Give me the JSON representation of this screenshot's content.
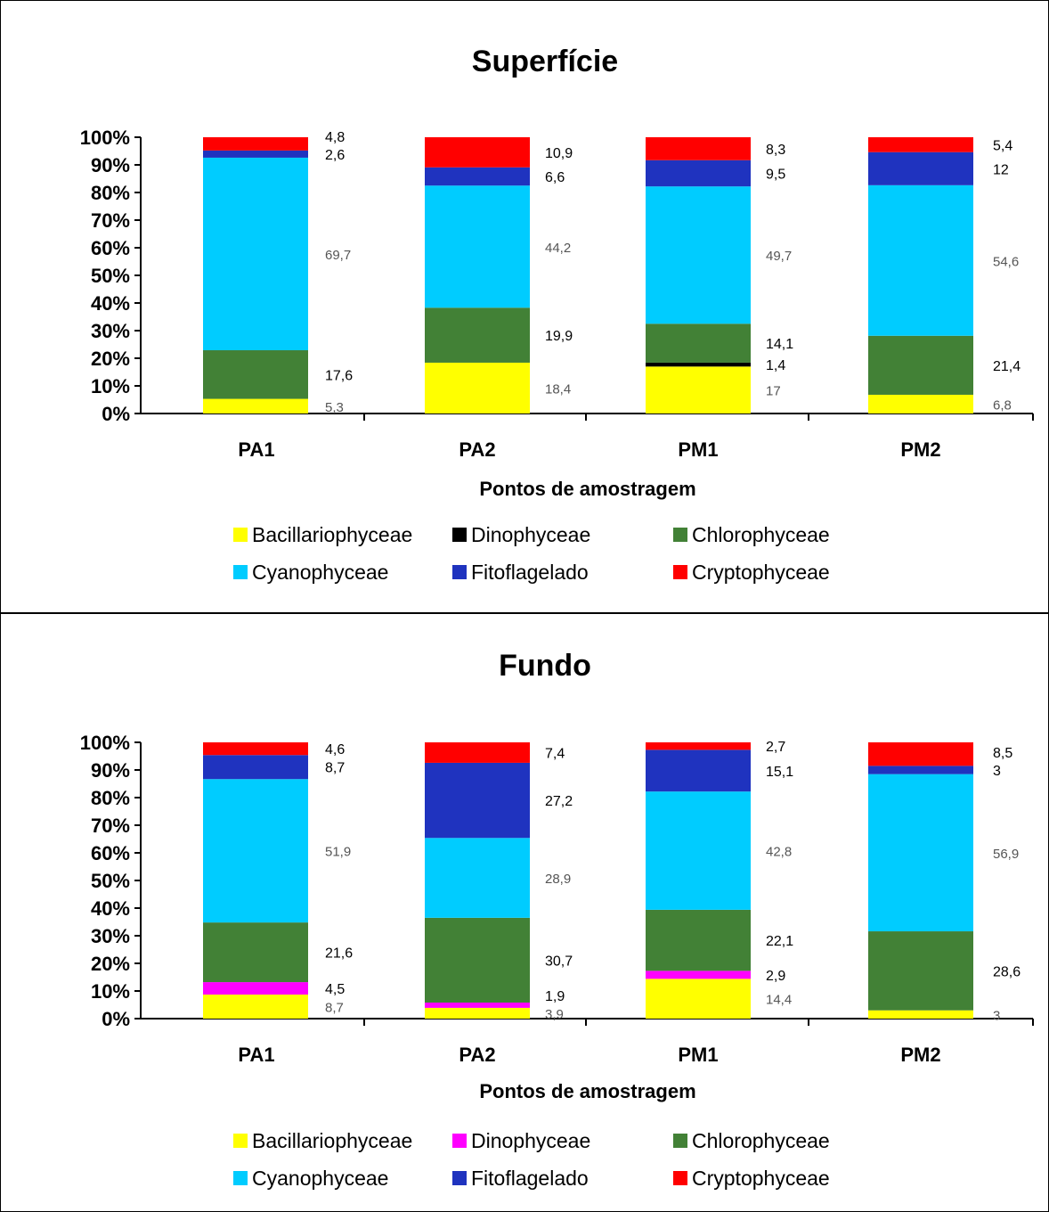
{
  "colors": {
    "Bacillariophyceae": "#ffff00",
    "Dinophyceae_superficie": "#000000",
    "Dinophyceae_fundo": "#ff00ff",
    "Chlorophyceae": "#428136",
    "Cyanophyceae": "#00ccff",
    "Fitoflagelado": "#1f33bf",
    "Cryptophyceae": "#ff0000"
  },
  "chart_data": [
    {
      "type": "bar",
      "stacked": true,
      "normalized": true,
      "title": "Superfície",
      "xlabel": "Pontos de amostragem",
      "ylabel": "",
      "ylim": [
        0,
        100
      ],
      "yticks": [
        "0%",
        "10%",
        "20%",
        "30%",
        "40%",
        "50%",
        "60%",
        "70%",
        "80%",
        "90%",
        "100%"
      ],
      "categories": [
        "PA1",
        "PA2",
        "PM1",
        "PM2"
      ],
      "legend_position": "bottom",
      "series": [
        {
          "name": "Bacillariophyceae",
          "color": "#ffff00",
          "values": [
            5.3,
            18.4,
            17,
            6.8
          ],
          "labels": [
            "5,3",
            "18,4",
            "17",
            "6,8"
          ]
        },
        {
          "name": "Dinophyceae",
          "color": "#000000",
          "values": [
            0,
            0,
            1.4,
            0
          ],
          "labels": [
            "",
            "",
            "1,4",
            ""
          ]
        },
        {
          "name": "Chlorophyceae",
          "color": "#428136",
          "values": [
            17.6,
            19.9,
            14.1,
            21.4
          ],
          "labels": [
            "17,6",
            "19,9",
            "14,1",
            "21,4"
          ]
        },
        {
          "name": "Cyanophyceae",
          "color": "#00ccff",
          "values": [
            69.7,
            44.2,
            49.7,
            54.6
          ],
          "labels": [
            "69,7",
            "44,2",
            "49,7",
            "54,6"
          ]
        },
        {
          "name": "Fitoflagelado",
          "color": "#1f33bf",
          "values": [
            2.6,
            6.6,
            9.5,
            12
          ],
          "labels": [
            "2,6",
            "6,6",
            "9,5",
            "12"
          ]
        },
        {
          "name": "Cryptophyceae",
          "color": "#ff0000",
          "values": [
            4.8,
            10.9,
            8.3,
            5.4
          ],
          "labels": [
            "4,8",
            "10,9",
            "8,3",
            "5,4"
          ]
        }
      ]
    },
    {
      "type": "bar",
      "stacked": true,
      "normalized": true,
      "title": "Fundo",
      "xlabel": "Pontos de amostragem",
      "ylabel": "",
      "ylim": [
        0,
        100
      ],
      "yticks": [
        "0%",
        "10%",
        "20%",
        "30%",
        "40%",
        "50%",
        "60%",
        "70%",
        "80%",
        "90%",
        "100%"
      ],
      "categories": [
        "PA1",
        "PA2",
        "PM1",
        "PM2"
      ],
      "legend_position": "bottom",
      "series": [
        {
          "name": "Bacillariophyceae",
          "color": "#ffff00",
          "values": [
            8.7,
            3.9,
            14.4,
            3
          ],
          "labels": [
            "8,7",
            "3,9",
            "14,4",
            "3"
          ]
        },
        {
          "name": "Dinophyceae",
          "color": "#ff00ff",
          "values": [
            4.5,
            1.9,
            2.9,
            0
          ],
          "labels": [
            "4,5",
            "1,9",
            "2,9",
            ""
          ]
        },
        {
          "name": "Chlorophyceae",
          "color": "#428136",
          "values": [
            21.6,
            30.7,
            22.1,
            28.6
          ],
          "labels": [
            "21,6",
            "30,7",
            "22,1",
            "28,6"
          ]
        },
        {
          "name": "Cyanophyceae",
          "color": "#00ccff",
          "values": [
            51.9,
            28.9,
            42.8,
            56.9
          ],
          "labels": [
            "51,9",
            "28,9",
            "42,8",
            "56,9"
          ]
        },
        {
          "name": "Fitoflagelado",
          "color": "#1f33bf",
          "values": [
            8.7,
            27.2,
            15.1,
            3
          ],
          "labels": [
            "8,7",
            "27,2",
            "15,1",
            "3"
          ]
        },
        {
          "name": "Cryptophyceae",
          "color": "#ff0000",
          "values": [
            4.6,
            7.4,
            2.7,
            8.5
          ],
          "labels": [
            "4,6",
            "7,4",
            "2,7",
            "8,5"
          ]
        }
      ]
    }
  ]
}
